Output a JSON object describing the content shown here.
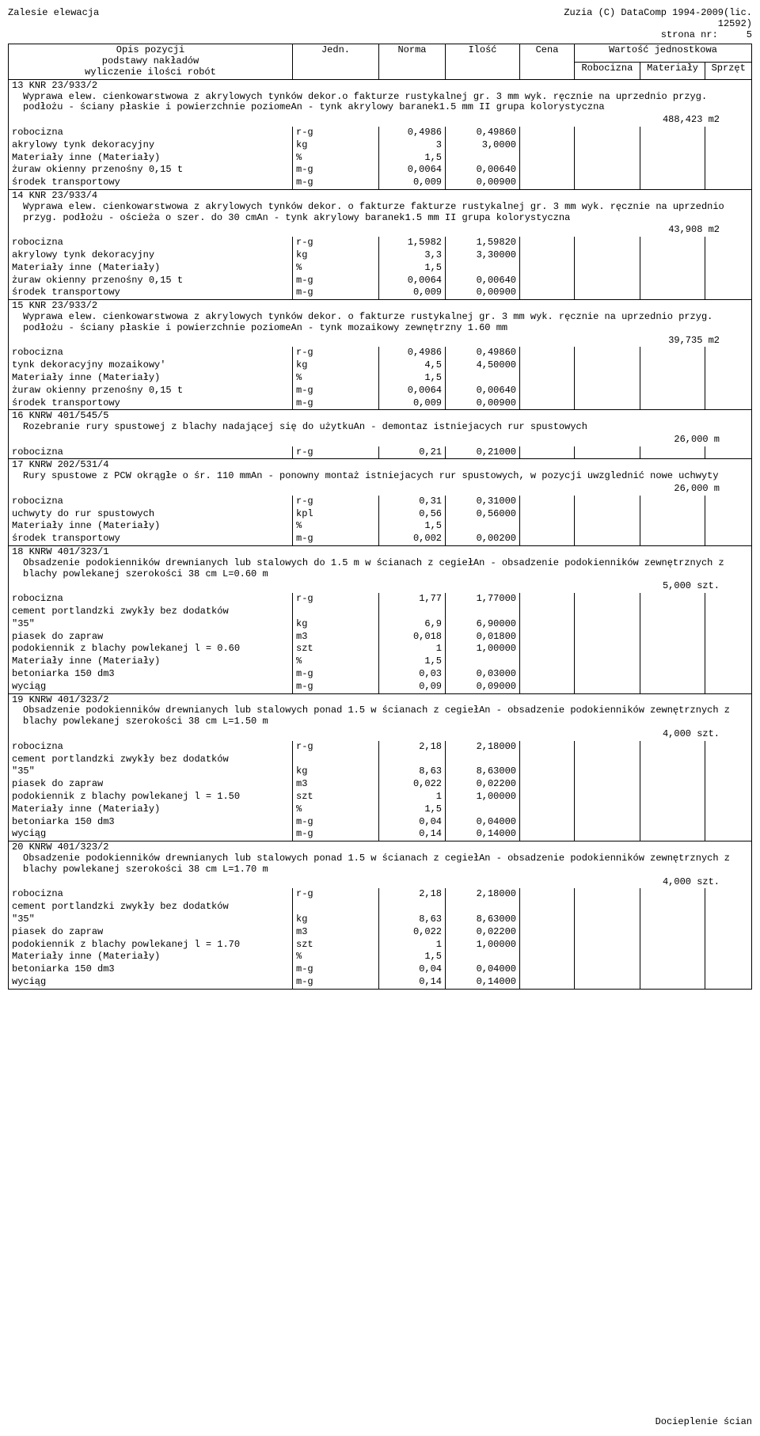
{
  "header": {
    "left": "Zalesie  elewacja",
    "right1": "Zuzia (C) DataComp 1994-2009(lic.",
    "right2": "12592)",
    "right3_prefix": "strona nr:",
    "right3_val": "5"
  },
  "columns": {
    "opis_l1": "Opis pozycji",
    "opis_l2": "podstawy nakładów",
    "opis_l3": "wyliczenie ilości robót",
    "jedn": "Jedn.",
    "norma": "Norma",
    "ilosc": "Ilość",
    "cena": "Cena",
    "wj": "Wartość jednostkowa",
    "rob": "Robocizna",
    "mat": "Materiały",
    "spr": "Sprzęt"
  },
  "sections": [
    {
      "title": "13 KNR 23/933/2",
      "body": "Wyprawa elew. cienkowarstwowa z akrylowych tynków dekor.o fakturze rustykalnej gr. 3 mm wyk. ręcznie na uprzednio przyg. podłożu - ściany płaskie i powierzchnie poziomeAn - tynk akrylowy baranek1.5 mm II grupa kolorystyczna",
      "total": "488,423 m2",
      "rows": [
        {
          "d": "robocizna",
          "j": "r-g",
          "n": "0,4986",
          "i": "0,49860"
        },
        {
          "d": "akrylowy tynk dekoracyjny",
          "j": "kg",
          "n": "3",
          "i": "3,0000"
        },
        {
          "d": "Materiały inne (Materiały)",
          "j": "%",
          "n": "1,5",
          "i": ""
        },
        {
          "d": "żuraw okienny przenośny 0,15 t",
          "j": "m-g",
          "n": "0,0064",
          "i": "0,00640"
        },
        {
          "d": "środek transportowy",
          "j": "m-g",
          "n": "0,009",
          "i": "0,00900"
        }
      ]
    },
    {
      "title": "14 KNR 23/933/4",
      "body": "Wyprawa elew. cienkowarstwowa z akrylowych tynków dekor. o fakturze fakturze rustykalnej gr. 3 mm wyk. ręcznie na uprzednio przyg. podłożu - ościeża o szer. do 30 cmAn - tynk akrylowy baranek1.5 mm II grupa kolorystyczna",
      "total": "43,908 m2",
      "rows": [
        {
          "d": "robocizna",
          "j": "r-g",
          "n": "1,5982",
          "i": "1,59820"
        },
        {
          "d": "akrylowy tynk dekoracyjny",
          "j": "kg",
          "n": "3,3",
          "i": "3,30000"
        },
        {
          "d": "Materiały inne (Materiały)",
          "j": "%",
          "n": "1,5",
          "i": ""
        },
        {
          "d": "żuraw okienny przenośny 0,15 t",
          "j": "m-g",
          "n": "0,0064",
          "i": "0,00640"
        },
        {
          "d": "środek transportowy",
          "j": "m-g",
          "n": "0,009",
          "i": "0,00900"
        }
      ]
    },
    {
      "title": "15 KNR 23/933/2",
      "body": "Wyprawa elew. cienkowarstwowa z akrylowych tynków dekor.  o fakturze rustykalnej gr. 3 mm wyk. ręcznie na uprzednio przyg. podłożu - ściany płaskie i powierzchnie poziomeAn - tynk mozaikowy zewnętrzny 1.60 mm",
      "total": "39,735 m2",
      "rows": [
        {
          "d": "robocizna",
          "j": "r-g",
          "n": "0,4986",
          "i": "0,49860"
        },
        {
          "d": "tynk dekoracyjny mozaikowy'",
          "j": "kg",
          "n": "4,5",
          "i": "4,50000"
        },
        {
          "d": "Materiały inne (Materiały)",
          "j": "%",
          "n": "1,5",
          "i": ""
        },
        {
          "d": "żuraw okienny przenośny 0,15 t",
          "j": "m-g",
          "n": "0,0064",
          "i": "0,00640"
        },
        {
          "d": "środek transportowy",
          "j": "m-g",
          "n": "0,009",
          "i": "0,00900"
        }
      ]
    },
    {
      "title": "16 KNRW 401/545/5",
      "body": "Rozebranie rury spustowej z blachy nadającej się do użytkuAn - demontaz istniejacych rur spustowych",
      "total": "26,000 m",
      "rows": [
        {
          "d": "robocizna",
          "j": "r-g",
          "n": "0,21",
          "i": "0,21000"
        }
      ]
    },
    {
      "title": "17 KNRW 202/531/4",
      "body": "Rury spustowe z PCW okrągłe o śr. 110 mmAn - ponowny montaż istniejacych rur spustowych, w pozycji uwzglednić nowe uchwyty",
      "total": "26,000 m",
      "rows": [
        {
          "d": "robocizna",
          "j": "r-g",
          "n": "0,31",
          "i": "0,31000"
        },
        {
          "d": "uchwyty do rur spustowych",
          "j": "kpl",
          "n": "0,56",
          "i": "0,56000"
        },
        {
          "d": "Materiały inne (Materiały)",
          "j": "%",
          "n": "1,5",
          "i": ""
        },
        {
          "d": "środek transportowy",
          "j": "m-g",
          "n": "0,002",
          "i": "0,00200"
        }
      ]
    },
    {
      "title": "18 KNRW 401/323/1",
      "body": "Obsadzenie podokienników drewnianych lub stalowych do 1.5 m w ścianach z cegiełAn - obsadzenie podokienników zewnętrznych z blachy powlekanej szerokości 38 cm  L=0.60 m",
      "total": "5,000 szt.",
      "rows": [
        {
          "d": "robocizna",
          "j": "r-g",
          "n": "1,77",
          "i": "1,77000"
        },
        {
          "d": "cement portlandzki zwykły bez dodatków",
          "j": "",
          "n": "",
          "i": ""
        },
        {
          "d": "\"35\"",
          "j": "kg",
          "n": "6,9",
          "i": "6,90000"
        },
        {
          "d": "piasek do zapraw",
          "j": "m3",
          "n": "0,018",
          "i": "0,01800"
        },
        {
          "d": "podokiennik z blachy powlekanej l = 0.60",
          "j": "szt",
          "n": "1",
          "i": "1,00000"
        },
        {
          "d": "Materiały inne (Materiały)",
          "j": "%",
          "n": "1,5",
          "i": ""
        },
        {
          "d": "betoniarka 150 dm3",
          "j": "m-g",
          "n": "0,03",
          "i": "0,03000"
        },
        {
          "d": "wyciąg",
          "j": "m-g",
          "n": "0,09",
          "i": "0,09000"
        }
      ]
    },
    {
      "title": "19 KNRW 401/323/2",
      "body": "Obsadzenie podokienników drewnianych lub stalowych ponad 1.5 w ścianach z cegiełAn - obsadzenie podokienników zewnętrznych z blachy powlekanej szerokości 38 cm  L=1.50 m",
      "total": "4,000 szt.",
      "rows": [
        {
          "d": "robocizna",
          "j": "r-g",
          "n": "2,18",
          "i": "2,18000"
        },
        {
          "d": "cement portlandzki zwykły bez dodatków",
          "j": "",
          "n": "",
          "i": ""
        },
        {
          "d": "\"35\"",
          "j": "kg",
          "n": "8,63",
          "i": "8,63000"
        },
        {
          "d": "piasek do zapraw",
          "j": "m3",
          "n": "0,022",
          "i": "0,02200"
        },
        {
          "d": "podokiennik z blachy powlekanej l = 1.50",
          "j": "szt",
          "n": "1",
          "i": "1,00000"
        },
        {
          "d": "Materiały inne (Materiały)",
          "j": "%",
          "n": "1,5",
          "i": ""
        },
        {
          "d": "betoniarka 150 dm3",
          "j": "m-g",
          "n": "0,04",
          "i": "0,04000"
        },
        {
          "d": "wyciąg",
          "j": "m-g",
          "n": "0,14",
          "i": "0,14000"
        }
      ]
    },
    {
      "title": "20 KNRW 401/323/2",
      "body": "Obsadzenie podokienników drewnianych lub stalowych ponad 1.5 w ścianach z cegiełAn - obsadzenie podokienników zewnętrznych z blachy powlekanej szerokości 38 cm  L=1.70 m",
      "total": "4,000 szt.",
      "rows": [
        {
          "d": "robocizna",
          "j": "r-g",
          "n": "2,18",
          "i": "2,18000"
        },
        {
          "d": "cement portlandzki zwykły bez dodatków",
          "j": "",
          "n": "",
          "i": ""
        },
        {
          "d": "\"35\"",
          "j": "kg",
          "n": "8,63",
          "i": "8,63000"
        },
        {
          "d": "piasek do zapraw",
          "j": "m3",
          "n": "0,022",
          "i": "0,02200"
        },
        {
          "d": "podokiennik z blachy powlekanej l = 1.70",
          "j": "szt",
          "n": "1",
          "i": "1,00000"
        },
        {
          "d": "Materiały inne (Materiały)",
          "j": "%",
          "n": "1,5",
          "i": ""
        },
        {
          "d": "betoniarka 150 dm3",
          "j": "m-g",
          "n": "0,04",
          "i": "0,04000"
        },
        {
          "d": "wyciąg",
          "j": "m-g",
          "n": "0,14",
          "i": "0,14000"
        }
      ]
    }
  ],
  "footer": "Docieplenie ścian"
}
